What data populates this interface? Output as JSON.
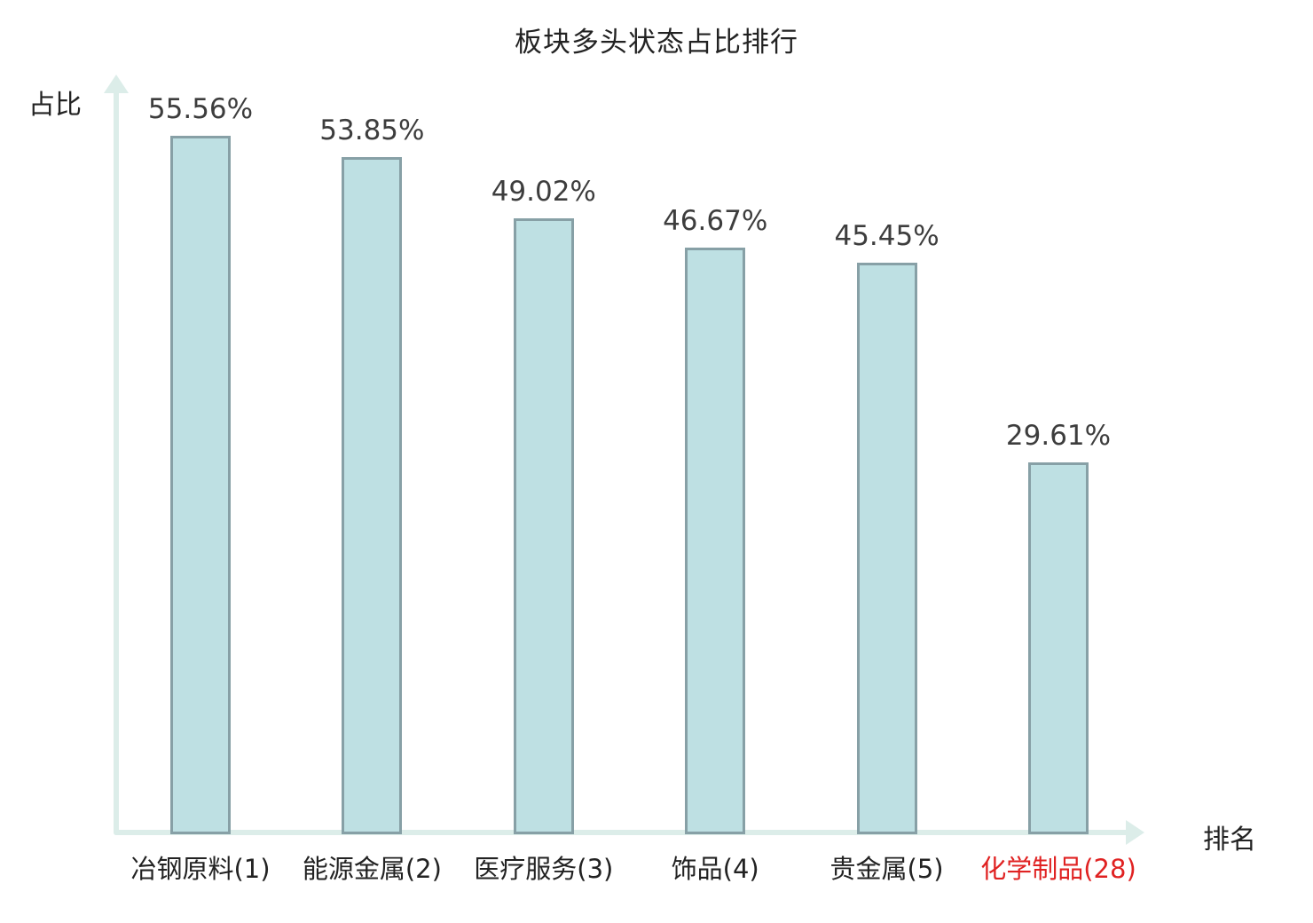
{
  "title": "板块多头状态占比排行",
  "axes": {
    "y_label": "占比",
    "x_label": "排名"
  },
  "colors": {
    "bar_fill": "#bee0e3",
    "bar_border": "#87a0a6",
    "axis": "#dcede9",
    "value_text": "#3d3d3d",
    "label_text": "#222222",
    "title_text": "#222222",
    "highlight_text": "#e02222"
  },
  "chart_data": {
    "type": "bar",
    "title": "板块多头状态占比排行",
    "xlabel": "排名",
    "ylabel": "占比",
    "categories": [
      "冶钢原料(1)",
      "能源金属(2)",
      "医疗服务(3)",
      "饰品(4)",
      "贵金属(5)",
      "化学制品(28)"
    ],
    "values": [
      55.56,
      53.85,
      49.02,
      46.67,
      45.45,
      29.61
    ],
    "value_labels": [
      "55.56%",
      "53.85%",
      "49.02%",
      "46.67%",
      "45.45%",
      "29.61%"
    ],
    "highlight_index": 5,
    "ylim": [
      0,
      60
    ],
    "grid": false,
    "legend": null,
    "notes": "bars ranked left-to-right; last category rendered in red highlight"
  }
}
